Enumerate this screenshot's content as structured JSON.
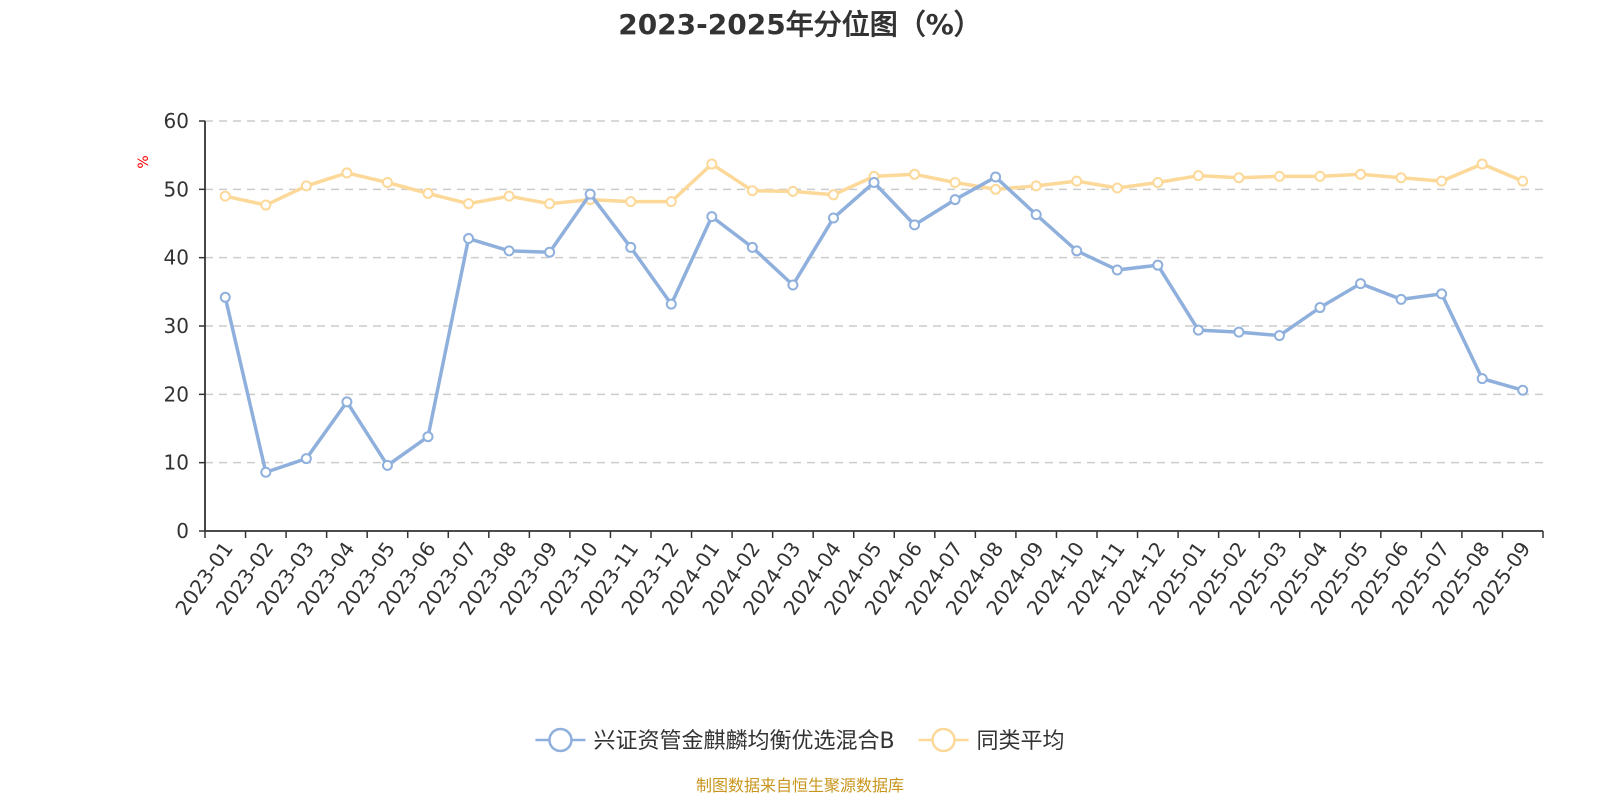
{
  "chart_data": {
    "type": "line",
    "title": "2023-2025年分位图（%）",
    "ylabel": "%",
    "ylim": [
      0,
      60
    ],
    "yticks": [
      0,
      10,
      20,
      30,
      40,
      50,
      60
    ],
    "grid": true,
    "legend_position": "bottom-center",
    "categories": [
      "2023-01",
      "2023-02",
      "2023-03",
      "2023-04",
      "2023-05",
      "2023-06",
      "2023-07",
      "2023-08",
      "2023-09",
      "2023-10",
      "2023-11",
      "2023-12",
      "2024-01",
      "2024-02",
      "2024-03",
      "2024-04",
      "2024-05",
      "2024-06",
      "2024-07",
      "2024-08",
      "2024-09",
      "2024-10",
      "2024-11",
      "2024-12",
      "2025-01",
      "2025-02",
      "2025-03",
      "2025-04",
      "2025-05",
      "2025-06",
      "2025-07",
      "2025-08",
      "2025-09"
    ],
    "series": [
      {
        "name": "兴证资管金麒麟均衡优选混合B",
        "color": "#8fb0dc",
        "values": [
          34.2,
          8.6,
          10.6,
          18.9,
          9.6,
          13.8,
          42.8,
          41.0,
          40.8,
          49.3,
          41.5,
          33.2,
          46.0,
          41.5,
          36.0,
          45.8,
          51.0,
          44.8,
          48.5,
          51.8,
          46.3,
          41.0,
          38.2,
          38.9,
          29.4,
          29.1,
          28.6,
          32.7,
          36.2,
          33.9,
          34.7,
          22.3,
          20.6
        ]
      },
      {
        "name": "同类平均",
        "color": "#fcd899",
        "values": [
          49.0,
          47.7,
          50.5,
          52.4,
          51.0,
          49.4,
          47.9,
          49.0,
          47.9,
          48.5,
          48.2,
          48.2,
          53.7,
          49.8,
          49.7,
          49.2,
          51.9,
          52.2,
          51.0,
          50.0,
          50.5,
          51.2,
          50.2,
          51.0,
          52.0,
          51.7,
          51.9,
          51.9,
          52.2,
          51.7,
          51.2,
          53.7,
          51.2
        ]
      }
    ],
    "source": "制图数据来自恒生聚源数据库",
    "colors": {
      "axis": "#333333",
      "grid": "#cccccc",
      "unit": "#ff0000",
      "source": "#c8961e",
      "marker_fill": "#ffffff"
    }
  }
}
